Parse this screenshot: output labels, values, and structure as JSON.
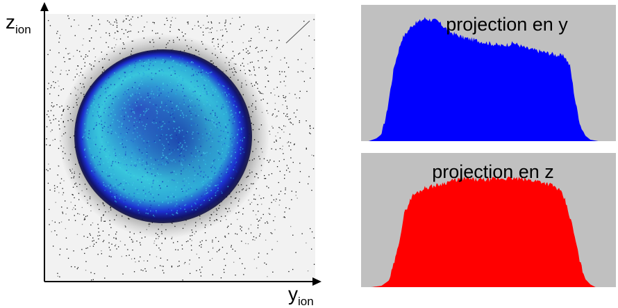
{
  "chart_data": [
    {
      "type": "heatmap",
      "xlabel": "y",
      "xlabel_subscript": "ion",
      "ylabel": "z",
      "ylabel_subscript": "ion",
      "grid": false,
      "colors": {
        "background": "#f2f2f2",
        "noise_dots": "#000000",
        "edge": "#0a0a3a",
        "ring": "#1c2fd0",
        "core_cyan": "#36c8dc",
        "center": "#1a3aa8"
      }
    },
    {
      "type": "area",
      "title": "projection en y",
      "grid": false,
      "colors": {
        "background": "#c0c0c0",
        "fill": "#0000ff"
      },
      "x": [
        0,
        0.03,
        0.06,
        0.08,
        0.1,
        0.13,
        0.16,
        0.2,
        0.25,
        0.3,
        0.35,
        0.4,
        0.45,
        0.5,
        0.55,
        0.6,
        0.65,
        0.7,
        0.75,
        0.8,
        0.82,
        0.84,
        0.86,
        0.88,
        0.9,
        0.93,
        0.96,
        1
      ],
      "values": [
        0,
        0,
        0.02,
        0.05,
        0.2,
        0.55,
        0.75,
        0.85,
        0.9,
        0.88,
        0.8,
        0.76,
        0.74,
        0.72,
        0.7,
        0.72,
        0.68,
        0.66,
        0.64,
        0.62,
        0.55,
        0.3,
        0.12,
        0.04,
        0.01,
        0,
        0,
        0
      ]
    },
    {
      "type": "area",
      "title": "projection en z",
      "grid": false,
      "colors": {
        "background": "#c0c0c0",
        "fill": "#ff0000"
      },
      "x": [
        0,
        0.04,
        0.08,
        0.11,
        0.14,
        0.17,
        0.2,
        0.25,
        0.3,
        0.35,
        0.4,
        0.45,
        0.5,
        0.55,
        0.6,
        0.65,
        0.7,
        0.75,
        0.78,
        0.8,
        0.83,
        0.86,
        0.88,
        0.9,
        0.92,
        0.96,
        1
      ],
      "values": [
        0,
        0,
        0.01,
        0.05,
        0.25,
        0.55,
        0.68,
        0.74,
        0.76,
        0.79,
        0.81,
        0.8,
        0.8,
        0.81,
        0.81,
        0.8,
        0.79,
        0.76,
        0.72,
        0.65,
        0.45,
        0.18,
        0.06,
        0.02,
        0,
        0,
        0
      ]
    }
  ]
}
